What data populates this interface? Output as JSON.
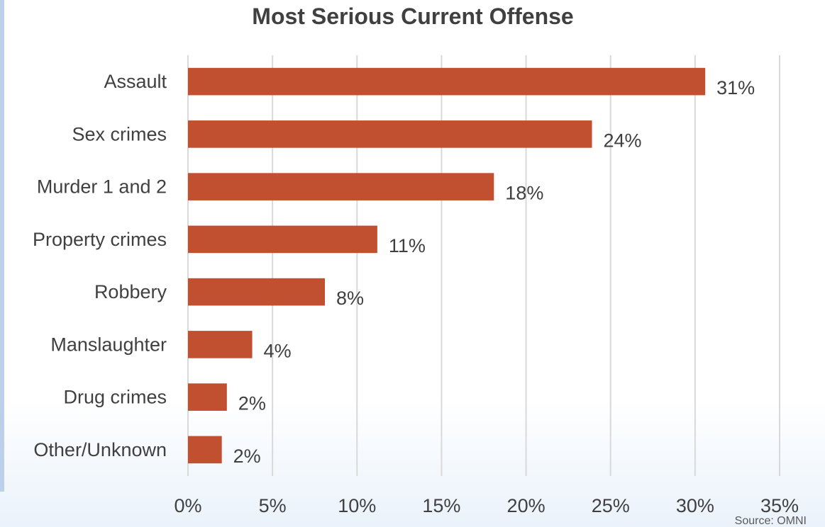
{
  "chart_data": {
    "type": "bar",
    "orientation": "horizontal",
    "title": "Most Serious Current Offense",
    "categories": [
      "Assault",
      "Sex crimes",
      "Murder 1 and 2",
      "Property crimes",
      "Robbery",
      "Manslaughter",
      "Drug crimes",
      "Other/Unknown"
    ],
    "values": [
      30.6,
      23.9,
      18.1,
      11.2,
      8.1,
      3.8,
      2.3,
      2.0
    ],
    "data_labels": [
      "31%",
      "24%",
      "18%",
      "11%",
      "8%",
      "4%",
      "2%",
      "2%"
    ],
    "xlim": [
      0,
      35
    ],
    "x_ticks": [
      0,
      5,
      10,
      15,
      20,
      25,
      30,
      35
    ],
    "x_tick_labels": [
      "0%",
      "5%",
      "10%",
      "15%",
      "20%",
      "25%",
      "30%",
      "35%"
    ],
    "xlabel": "",
    "ylabel": "",
    "grid": true,
    "legend": "none",
    "bar_color": "#c0502f",
    "source": "Source: OMNI"
  }
}
